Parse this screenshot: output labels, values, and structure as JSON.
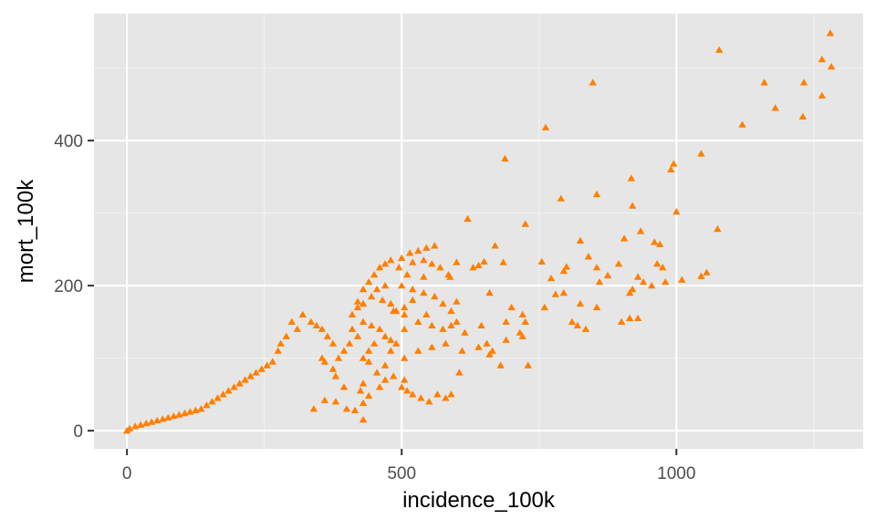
{
  "chart_data": {
    "type": "scatter",
    "title": "",
    "xlabel": "incidence_100k",
    "ylabel": "mort_100k",
    "xlim": [
      -60,
      1340
    ],
    "ylim": [
      -25,
      575
    ],
    "x_ticks": [
      0,
      500,
      1000
    ],
    "x_tick_labels": [
      "0",
      "500",
      "1000"
    ],
    "y_ticks": [
      0,
      200,
      400
    ],
    "y_tick_labels": [
      "0",
      "200",
      "400"
    ],
    "grid": true,
    "legend": "none",
    "marker": "triangle",
    "point_color": "#FF7F00",
    "panel_background": "#E6E6E6",
    "series": [
      {
        "name": "",
        "points": [
          [
            1280,
            548
          ],
          [
            1265,
            512
          ],
          [
            1282,
            502
          ],
          [
            1265,
            462
          ],
          [
            1078,
            525
          ],
          [
            1160,
            480
          ],
          [
            1232,
            480
          ],
          [
            1180,
            445
          ],
          [
            1230,
            433
          ],
          [
            1120,
            422
          ],
          [
            848,
            480
          ],
          [
            762,
            418
          ],
          [
            688,
            375
          ],
          [
            1045,
            382
          ],
          [
            995,
            368
          ],
          [
            990,
            360
          ],
          [
            918,
            348
          ],
          [
            855,
            326
          ],
          [
            790,
            320
          ],
          [
            920,
            310
          ],
          [
            1000,
            302
          ],
          [
            620,
            292
          ],
          [
            725,
            285
          ],
          [
            1075,
            278
          ],
          [
            935,
            275
          ],
          [
            905,
            265
          ],
          [
            825,
            262
          ],
          [
            960,
            260
          ],
          [
            970,
            257
          ],
          [
            840,
            240
          ],
          [
            755,
            233
          ],
          [
            772,
            210
          ],
          [
            800,
            226
          ],
          [
            685,
            232
          ],
          [
            670,
            255
          ],
          [
            650,
            233
          ],
          [
            640,
            228
          ],
          [
            630,
            225
          ],
          [
            600,
            232
          ],
          [
            588,
            212
          ],
          [
            540,
            212
          ],
          [
            855,
            225
          ],
          [
            895,
            230
          ],
          [
            965,
            230
          ],
          [
            975,
            225
          ],
          [
            795,
            220
          ],
          [
            875,
            214
          ],
          [
            930,
            212
          ],
          [
            940,
            205
          ],
          [
            955,
            200
          ],
          [
            1010,
            208
          ],
          [
            1055,
            218
          ],
          [
            1045,
            213
          ],
          [
            980,
            205
          ],
          [
            860,
            205
          ],
          [
            795,
            190
          ],
          [
            780,
            188
          ],
          [
            920,
            195
          ],
          [
            915,
            190
          ],
          [
            825,
            175
          ],
          [
            855,
            170
          ],
          [
            760,
            170
          ],
          [
            700,
            170
          ],
          [
            690,
            150
          ],
          [
            720,
            160
          ],
          [
            725,
            150
          ],
          [
            600,
            178
          ],
          [
            520,
            180
          ],
          [
            505,
            170
          ],
          [
            485,
            165
          ],
          [
            545,
            160
          ],
          [
            555,
            145
          ],
          [
            660,
            190
          ],
          [
            505,
            160
          ],
          [
            530,
            150
          ],
          [
            505,
            140
          ],
          [
            645,
            145
          ],
          [
            615,
            135
          ],
          [
            600,
            150
          ],
          [
            590,
            145
          ],
          [
            575,
            140
          ],
          [
            900,
            150
          ],
          [
            915,
            155
          ],
          [
            930,
            155
          ],
          [
            820,
            145
          ],
          [
            835,
            140
          ],
          [
            715,
            135
          ],
          [
            810,
            150
          ],
          [
            690,
            125
          ],
          [
            720,
            130
          ],
          [
            640,
            115
          ],
          [
            655,
            120
          ],
          [
            665,
            110
          ],
          [
            555,
            115
          ],
          [
            580,
            120
          ],
          [
            610,
            110
          ],
          [
            660,
            105
          ],
          [
            680,
            90
          ],
          [
            730,
            90
          ],
          [
            605,
            80
          ],
          [
            530,
            110
          ],
          [
            505,
            100
          ],
          [
            480,
            110
          ],
          [
            470,
            90
          ],
          [
            505,
            70
          ],
          [
            500,
            60
          ],
          [
            510,
            55
          ],
          [
            520,
            50
          ],
          [
            535,
            45
          ],
          [
            550,
            40
          ],
          [
            565,
            50
          ],
          [
            580,
            45
          ],
          [
            590,
            50
          ],
          [
            460,
            60
          ],
          [
            470,
            70
          ],
          [
            485,
            75
          ],
          [
            455,
            80
          ],
          [
            440,
            95
          ],
          [
            430,
            65
          ],
          [
            425,
            55
          ],
          [
            440,
            48
          ],
          [
            430,
            38
          ],
          [
            380,
            40
          ],
          [
            360,
            42
          ],
          [
            340,
            30
          ],
          [
            400,
            30
          ],
          [
            415,
            28
          ],
          [
            430,
            15
          ],
          [
            395,
            60
          ],
          [
            380,
            75
          ],
          [
            375,
            85
          ],
          [
            360,
            95
          ],
          [
            355,
            100
          ],
          [
            410,
            140
          ],
          [
            410,
            160
          ],
          [
            420,
            178
          ],
          [
            430,
            195
          ],
          [
            440,
            205
          ],
          [
            450,
            215
          ],
          [
            460,
            225
          ],
          [
            470,
            230
          ],
          [
            480,
            235
          ],
          [
            500,
            238
          ],
          [
            515,
            245
          ],
          [
            530,
            248
          ],
          [
            545,
            252
          ],
          [
            560,
            255
          ],
          [
            520,
            232
          ],
          [
            540,
            235
          ],
          [
            555,
            230
          ],
          [
            570,
            225
          ],
          [
            585,
            215
          ],
          [
            495,
            225
          ],
          [
            510,
            215
          ],
          [
            500,
            200
          ],
          [
            520,
            195
          ],
          [
            540,
            190
          ],
          [
            560,
            185
          ],
          [
            575,
            175
          ],
          [
            590,
            165
          ],
          [
            470,
            200
          ],
          [
            455,
            195
          ],
          [
            445,
            185
          ],
          [
            430,
            175
          ],
          [
            420,
            170
          ],
          [
            465,
            180
          ],
          [
            480,
            175
          ],
          [
            490,
            165
          ],
          [
            430,
            150
          ],
          [
            445,
            145
          ],
          [
            460,
            140
          ],
          [
            470,
            130
          ],
          [
            480,
            125
          ],
          [
            490,
            120
          ],
          [
            450,
            120
          ],
          [
            440,
            110
          ],
          [
            430,
            100
          ],
          [
            420,
            130
          ],
          [
            405,
            120
          ],
          [
            395,
            110
          ],
          [
            385,
            100
          ],
          [
            375,
            120
          ],
          [
            365,
            130
          ],
          [
            355,
            140
          ],
          [
            345,
            145
          ],
          [
            335,
            150
          ],
          [
            320,
            160
          ],
          [
            300,
            150
          ],
          [
            310,
            140
          ],
          [
            290,
            130
          ],
          [
            280,
            120
          ],
          [
            275,
            110
          ],
          [
            265,
            95
          ],
          [
            255,
            90
          ],
          [
            245,
            85
          ],
          [
            235,
            80
          ],
          [
            225,
            75
          ],
          [
            215,
            70
          ],
          [
            205,
            65
          ],
          [
            195,
            60
          ],
          [
            185,
            55
          ],
          [
            175,
            50
          ],
          [
            165,
            45
          ],
          [
            155,
            40
          ],
          [
            145,
            35
          ],
          [
            135,
            30
          ],
          [
            125,
            28
          ],
          [
            115,
            26
          ],
          [
            105,
            24
          ],
          [
            95,
            22
          ],
          [
            85,
            20
          ],
          [
            75,
            18
          ],
          [
            65,
            16
          ],
          [
            55,
            14
          ],
          [
            45,
            12
          ],
          [
            35,
            10
          ],
          [
            25,
            8
          ],
          [
            15,
            6
          ],
          [
            5,
            3
          ],
          [
            0,
            0
          ]
        ]
      }
    ]
  }
}
